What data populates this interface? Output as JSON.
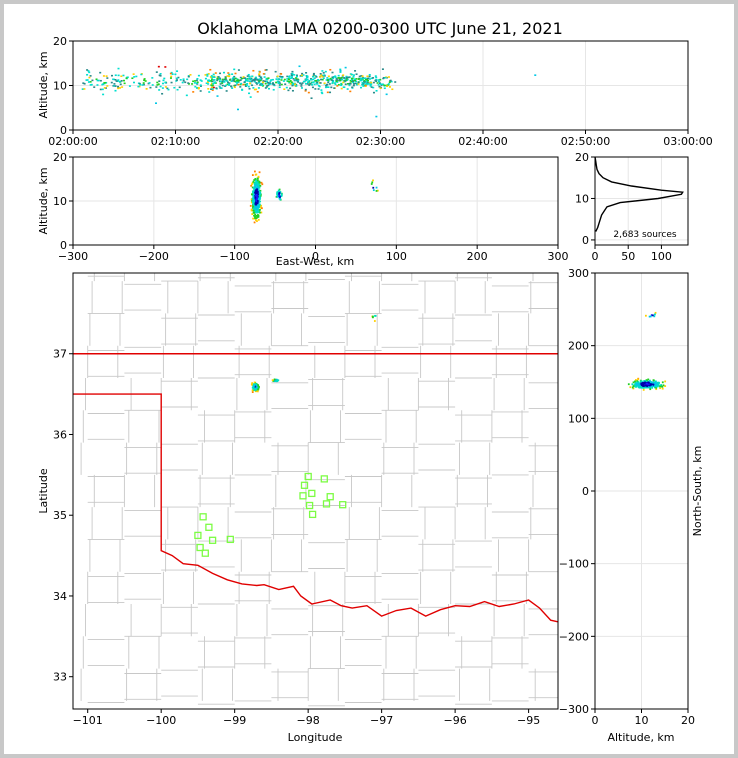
{
  "title": "Oklahoma LMA 0200-0300 UTC June 21, 2021",
  "colors": {
    "frame": "#c8c8c8",
    "state_border": "#e00000",
    "county_lines": "#c8c8c8",
    "stations": "#7cfc44",
    "grid": "#e6e6e6"
  },
  "chart_data": [
    {
      "id": "time_height",
      "type": "scatter",
      "title": "Oklahoma LMA 0200-0300 UTC June 21, 2021",
      "ylabel": "Altitude, km",
      "ylim": [
        0,
        20
      ],
      "yticks": [
        "0",
        "10",
        "20"
      ],
      "xlim_minutes": [
        0,
        60
      ],
      "xticks": [
        "02:00:00",
        "02:10:00",
        "02:20:00",
        "02:30:00",
        "02:40:00",
        "02:50:00",
        "03:00:00"
      ],
      "clusters": [
        {
          "x_range": [
            0.5,
            31.5
          ],
          "y_center": 11,
          "y_spread": 2.5,
          "count": 520
        },
        {
          "x_range": [
            13,
            29
          ],
          "y_center": 11.5,
          "y_spread": 1.5,
          "count": 300
        },
        {
          "x": 26.5,
          "y": 14.2
        },
        {
          "x": 26,
          "y": 13.5
        },
        {
          "x": 22,
          "y": 14.5
        },
        {
          "x": 14,
          "y": 7.8
        },
        {
          "x": 8,
          "y": 6.2
        },
        {
          "x": 16,
          "y": 4.8
        },
        {
          "x": 29.5,
          "y": 3.2
        },
        {
          "x": 30.5,
          "y": 8.2
        },
        {
          "x": 45,
          "y": 12.5
        }
      ]
    },
    {
      "id": "ew_height",
      "type": "scatter",
      "xlabel": "East-West, km",
      "ylabel": "Altitude, km",
      "xlim": [
        -300,
        300
      ],
      "ylim": [
        0,
        20
      ],
      "xticks": [
        "−300",
        "−200",
        "−100",
        "0",
        "100",
        "200",
        "300"
      ],
      "yticks": [
        "0",
        "10",
        "20"
      ],
      "clusters": [
        {
          "x_center": -74,
          "x_spread": 6,
          "y_center": 11,
          "y_spread": 5,
          "count": 420
        },
        {
          "x_center": -46,
          "x_spread": 4,
          "y_center": 11.5,
          "y_spread": 1.5,
          "count": 30
        },
        {
          "x_center": 72,
          "x_spread": 5,
          "y_center": 13.5,
          "y_spread": 1.5,
          "count": 8
        }
      ]
    },
    {
      "id": "altitude_histogram",
      "type": "line",
      "xlim": [
        0,
        140
      ],
      "ylim": [
        0,
        20
      ],
      "xticks": [
        "0",
        "50",
        "100"
      ],
      "yticks": [
        "0",
        "10",
        "20"
      ],
      "annotation": "2,683 sources",
      "profile": [
        {
          "alt": 2,
          "count": 1
        },
        {
          "alt": 3,
          "count": 4
        },
        {
          "alt": 4,
          "count": 6
        },
        {
          "alt": 5,
          "count": 8
        },
        {
          "alt": 6,
          "count": 10
        },
        {
          "alt": 7,
          "count": 14
        },
        {
          "alt": 8,
          "count": 18
        },
        {
          "alt": 9,
          "count": 38
        },
        {
          "alt": 10,
          "count": 95
        },
        {
          "alt": 11,
          "count": 130
        },
        {
          "alt": 11.5,
          "count": 132
        },
        {
          "alt": 12,
          "count": 100
        },
        {
          "alt": 13,
          "count": 55
        },
        {
          "alt": 14,
          "count": 25
        },
        {
          "alt": 15,
          "count": 12
        },
        {
          "alt": 16,
          "count": 6
        },
        {
          "alt": 17,
          "count": 3
        },
        {
          "alt": 18,
          "count": 2
        },
        {
          "alt": 19,
          "count": 1
        },
        {
          "alt": 20,
          "count": 0
        }
      ]
    },
    {
      "id": "plan_view",
      "type": "scatter",
      "xlabel": "Longitude",
      "ylabel": "Latitude",
      "xlim": [
        -101.2,
        -94.6
      ],
      "ylim": [
        32.6,
        38.0
      ],
      "xticks": [
        "−101",
        "−100",
        "−99",
        "−98",
        "−97",
        "−96",
        "−95"
      ],
      "yticks": [
        "33",
        "34",
        "35",
        "36",
        "37"
      ],
      "clusters": [
        {
          "x_center": -98.73,
          "x_spread": 0.06,
          "y_center": 36.6,
          "y_spread": 0.06,
          "count": 120
        },
        {
          "x_center": -98.45,
          "x_spread": 0.05,
          "y_center": 36.68,
          "y_spread": 0.02,
          "count": 18
        },
        {
          "x_center": -97.1,
          "x_spread": 0.04,
          "y_center": 37.46,
          "y_spread": 0.04,
          "count": 6
        }
      ],
      "stations": [
        [
          -99.43,
          34.98
        ],
        [
          -99.35,
          34.85
        ],
        [
          -99.5,
          34.75
        ],
        [
          -99.3,
          34.69
        ],
        [
          -99.47,
          34.6
        ],
        [
          -99.4,
          34.53
        ],
        [
          -99.06,
          34.7
        ],
        [
          -98.0,
          35.48
        ],
        [
          -98.05,
          35.37
        ],
        [
          -97.95,
          35.27
        ],
        [
          -97.78,
          35.45
        ],
        [
          -97.7,
          35.23
        ],
        [
          -98.07,
          35.24
        ],
        [
          -97.98,
          35.12
        ],
        [
          -97.75,
          35.14
        ],
        [
          -97.94,
          35.01
        ],
        [
          -97.53,
          35.13
        ]
      ]
    },
    {
      "id": "ns_height",
      "type": "scatter",
      "xlabel": "Altitude, km",
      "ylabel": "North-South, km",
      "xlim": [
        0,
        20
      ],
      "ylim": [
        -300,
        300
      ],
      "xticks": [
        "0",
        "10",
        "20"
      ],
      "yticks": [
        "−300",
        "−200",
        "−100",
        "0",
        "100",
        "200",
        "300"
      ],
      "clusters": [
        {
          "x_center": 11,
          "x_spread": 5,
          "y_center": 148,
          "y_spread": 7,
          "count": 260
        },
        {
          "x_center": 12,
          "x_spread": 1.5,
          "y_center": 243,
          "y_spread": 4,
          "count": 8
        }
      ]
    }
  ]
}
